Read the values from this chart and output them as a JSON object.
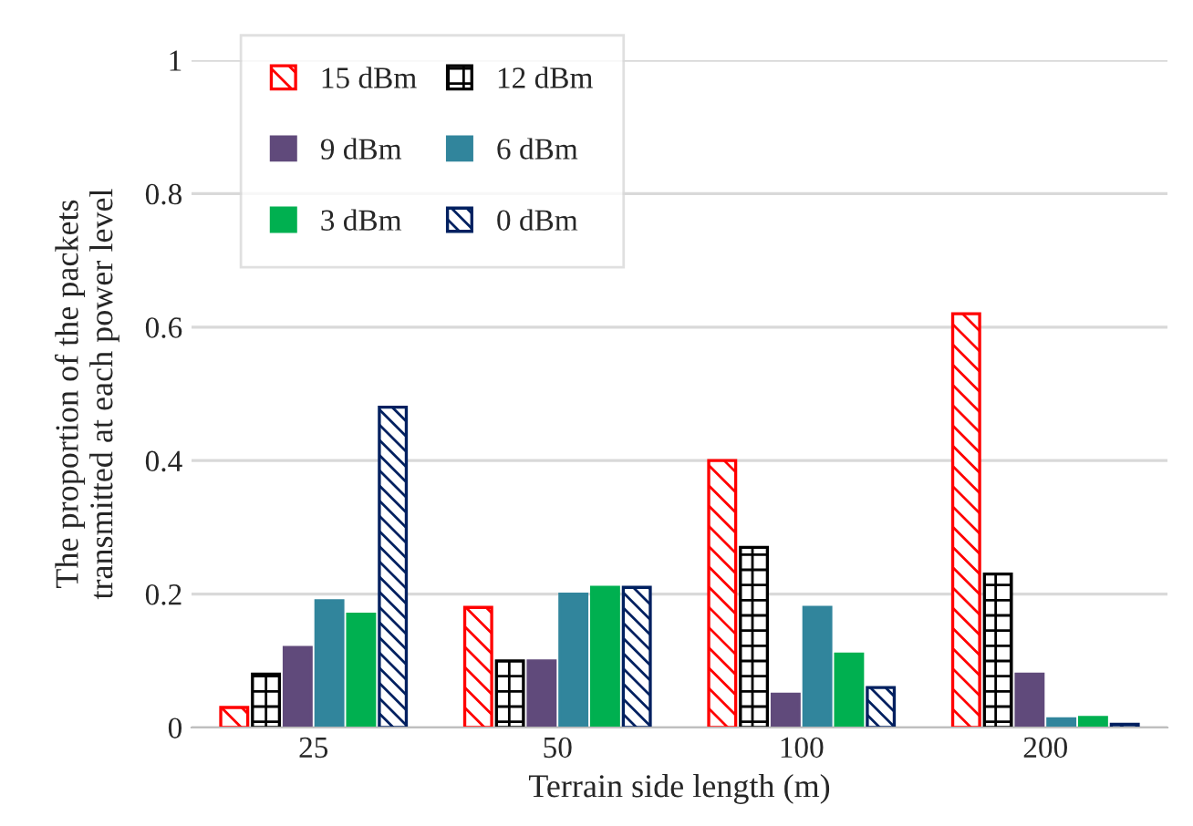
{
  "chart_data": {
    "type": "bar",
    "xlabel": "Terrain side length (m)",
    "ylabel": "The proportion of the packets\ntransmitted at each power level",
    "categories": [
      "25",
      "50",
      "100",
      "200"
    ],
    "series": [
      {
        "name": "15 dBm",
        "color": "#ff0000",
        "values": [
          0.03,
          0.18,
          0.4,
          0.62
        ]
      },
      {
        "name": "12 dBm",
        "color": "#000000",
        "values": [
          0.08,
          0.1,
          0.27,
          0.23
        ]
      },
      {
        "name": "9 dBm",
        "color": "#604a7b",
        "values": [
          0.12,
          0.1,
          0.05,
          0.08
        ]
      },
      {
        "name": "6 dBm",
        "color": "#31859c",
        "values": [
          0.19,
          0.2,
          0.18,
          0.013
        ]
      },
      {
        "name": "3 dBm",
        "color": "#00b050",
        "values": [
          0.17,
          0.21,
          0.11,
          0.015
        ]
      },
      {
        "name": "0 dBm",
        "color": "#002060",
        "values": [
          0.48,
          0.21,
          0.06,
          0.005
        ]
      }
    ],
    "ylim": [
      0,
      1
    ],
    "yticks": [
      0,
      0.2,
      0.4,
      0.6,
      0.8,
      1
    ],
    "grid": "y",
    "legend": "top left"
  }
}
